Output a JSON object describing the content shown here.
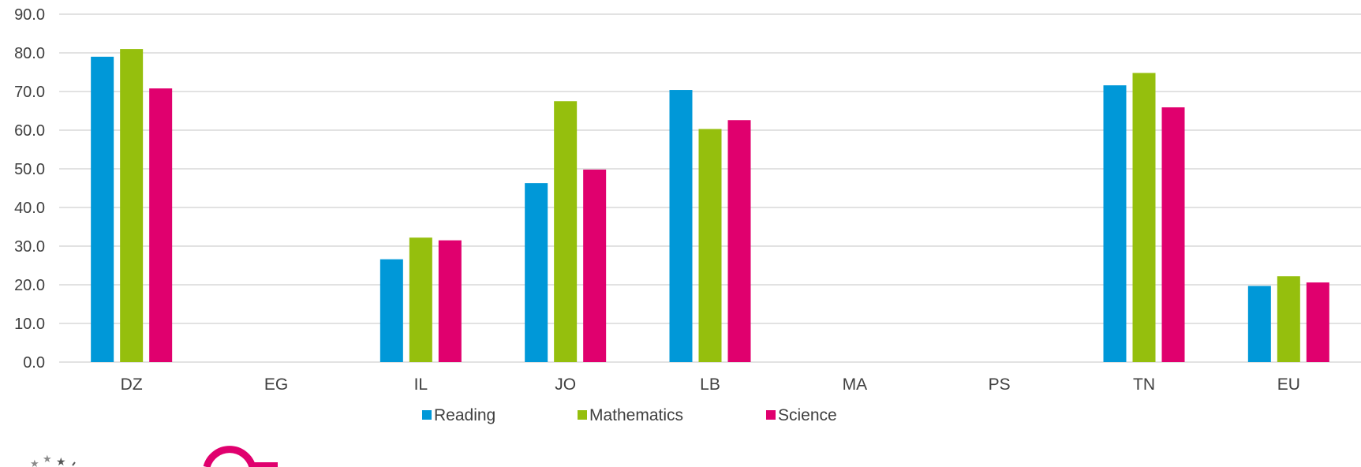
{
  "chart_data": {
    "type": "bar",
    "categories": [
      "DZ",
      "EG",
      "IL",
      "JO",
      "LB",
      "MA",
      "PS",
      "TN",
      "EU"
    ],
    "series": [
      {
        "name": "Reading",
        "color": "#0098d8",
        "values": [
          79.0,
          null,
          26.6,
          46.3,
          70.4,
          null,
          null,
          71.6,
          19.7
        ]
      },
      {
        "name": "Mathematics",
        "color": "#95bf0d",
        "values": [
          81.0,
          null,
          32.2,
          67.5,
          60.3,
          null,
          null,
          74.8,
          22.2
        ]
      },
      {
        "name": "Science",
        "color": "#e0006e",
        "values": [
          70.8,
          null,
          31.5,
          49.8,
          62.6,
          null,
          null,
          65.9,
          20.6
        ]
      }
    ],
    "yticks": [
      "0.0",
      "10.0",
      "20.0",
      "30.0",
      "40.0",
      "50.0",
      "60.0",
      "70.0",
      "80.0",
      "90.0"
    ],
    "ylim": [
      0,
      90
    ],
    "grid": true,
    "legend_position": "bottom"
  },
  "colors": {
    "grid": "#d9d9d9",
    "text": "#404040"
  },
  "logos": [
    "eu-stars-logo",
    "etf-logo"
  ]
}
